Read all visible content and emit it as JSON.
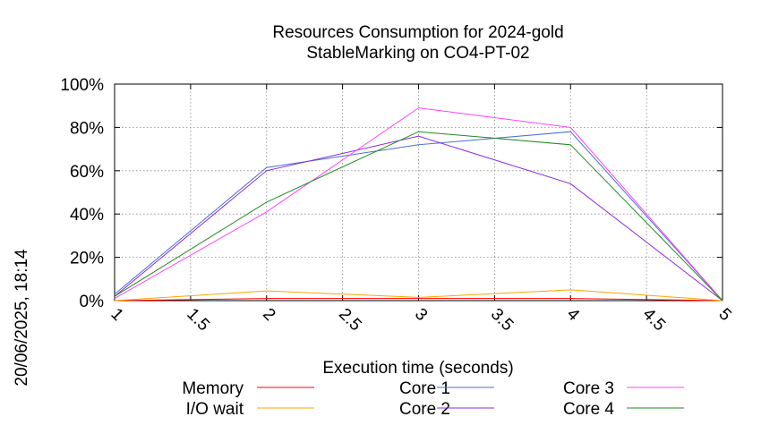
{
  "chart_data": {
    "type": "line",
    "title": "Resources Consumption for 2024-gold",
    "subtitle": "StableMarking on CO4-PT-02",
    "xlabel": "Execution time (seconds)",
    "ylabel": "",
    "side_label": "20/06/2025, 18:14",
    "xlim": [
      1,
      5
    ],
    "ylim": [
      0,
      100
    ],
    "x_ticks": [
      1,
      1.5,
      2,
      2.5,
      3,
      3.5,
      4,
      4.5,
      5
    ],
    "x_tick_labels": [
      "1",
      "1.5",
      "2",
      "2.5",
      "3",
      "3.5",
      "4",
      "4.5",
      "5"
    ],
    "y_ticks": [
      0,
      20,
      40,
      60,
      80,
      100
    ],
    "y_tick_labels": [
      "0%",
      "20%",
      "40%",
      "60%",
      "80%",
      "100%"
    ],
    "grid": true,
    "legend_position": "bottom",
    "x": [
      1,
      2,
      3,
      4,
      5
    ],
    "series": [
      {
        "name": "Memory",
        "color": "#ff0000",
        "values": [
          0,
          1,
          1,
          1,
          0
        ]
      },
      {
        "name": "I/O wait",
        "color": "#ffa500",
        "values": [
          0,
          4.5,
          1.5,
          5,
          0
        ]
      },
      {
        "name": "Core 1",
        "color": "#4a6fd6",
        "values": [
          3,
          61.5,
          72,
          78,
          0
        ]
      },
      {
        "name": "Core 2",
        "color": "#8a2be2",
        "values": [
          2,
          60,
          76,
          54,
          0
        ]
      },
      {
        "name": "Core 3",
        "color": "#ff44ff",
        "values": [
          1,
          41,
          89,
          80,
          0
        ]
      },
      {
        "name": "Core 4",
        "color": "#228b22",
        "values": [
          2,
          45.5,
          78,
          72,
          0
        ]
      }
    ]
  }
}
